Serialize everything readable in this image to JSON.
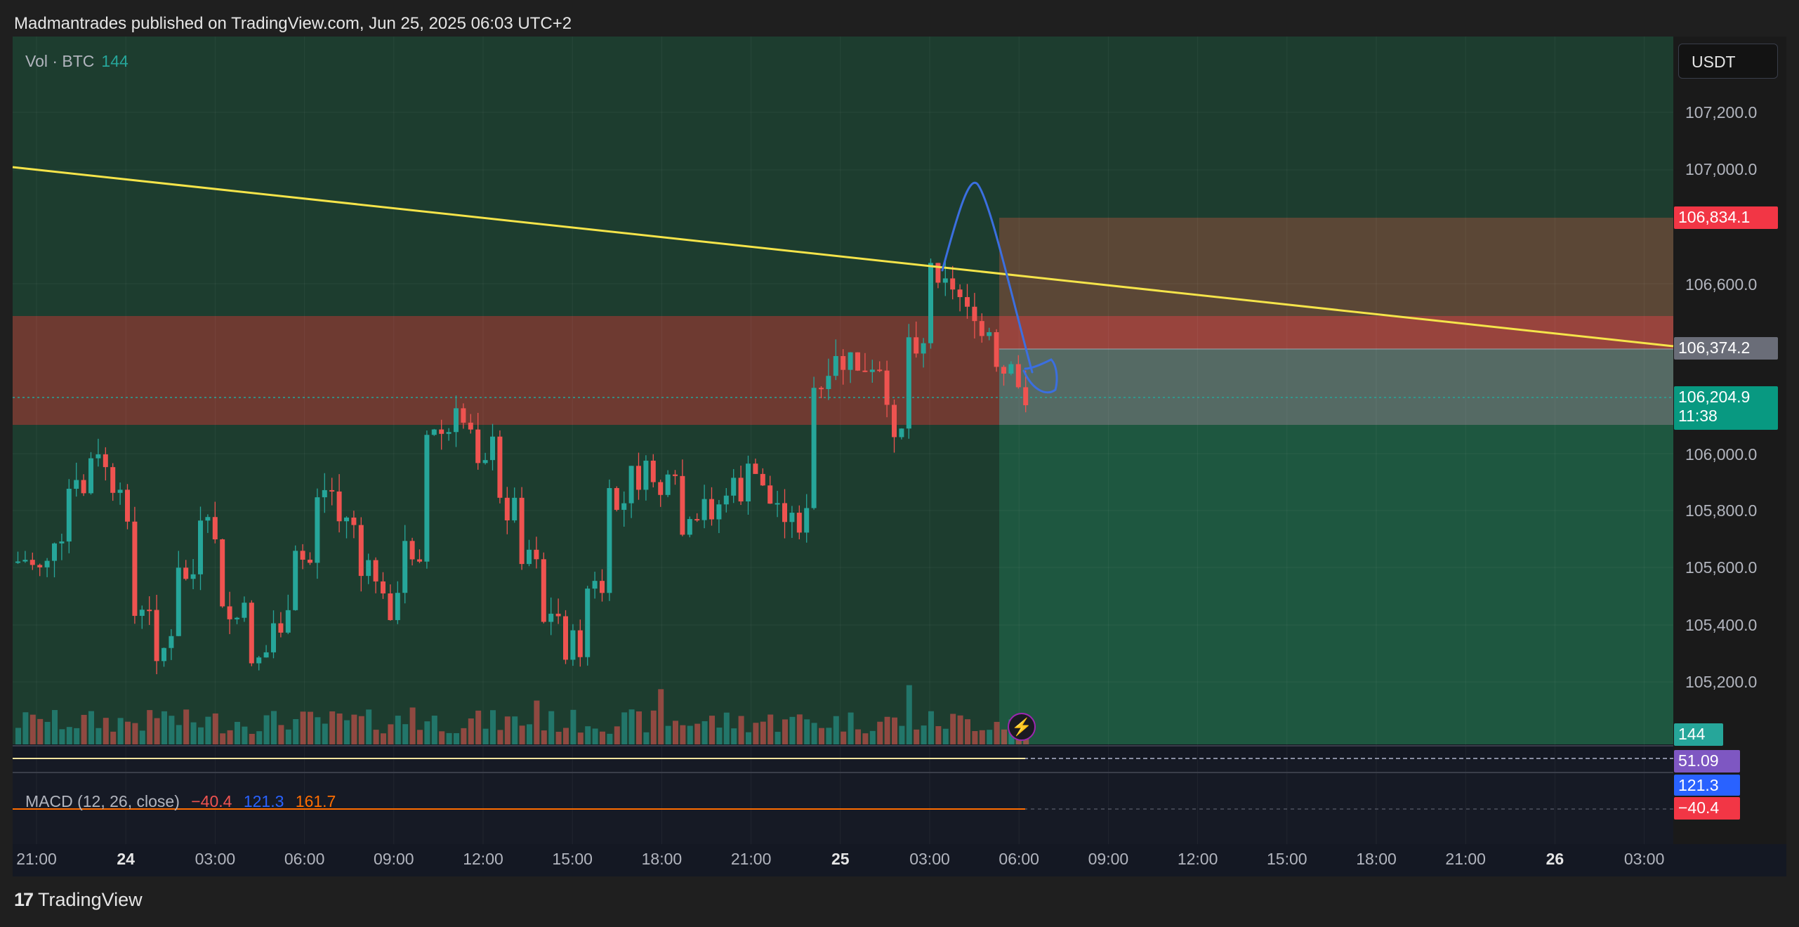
{
  "header": {
    "publisher": "Madmantrades published on TradingView.com, Jun 25, 2025 06:03 UTC+2"
  },
  "legend": {
    "vol_label": "Vol · BTC",
    "vol_value": "144",
    "macd_label": "MACD (12, 26, close)",
    "macd_values": [
      "−40.4",
      "121.3",
      "161.7"
    ]
  },
  "currency": "USDT",
  "price_axis": [
    "107,200.0",
    "107,000.0",
    "106,600.0",
    "106,000.0",
    "105,800.0",
    "105,600.0",
    "105,400.0",
    "105,200.0"
  ],
  "badges": {
    "upper": "106,834.1",
    "mid": "106,374.2",
    "last_price": "106,204.9",
    "countdown": "11:38",
    "volume": "144",
    "rsi": "51.09",
    "macd_signal": "121.3",
    "macd_hist": "−40.4"
  },
  "time_axis": [
    {
      "label": "21:00",
      "bold": false
    },
    {
      "label": "24",
      "bold": true
    },
    {
      "label": "03:00",
      "bold": false
    },
    {
      "label": "06:00",
      "bold": false
    },
    {
      "label": "09:00",
      "bold": false
    },
    {
      "label": "12:00",
      "bold": false
    },
    {
      "label": "15:00",
      "bold": false
    },
    {
      "label": "18:00",
      "bold": false
    },
    {
      "label": "21:00",
      "bold": false
    },
    {
      "label": "25",
      "bold": true
    },
    {
      "label": "03:00",
      "bold": false
    },
    {
      "label": "06:00",
      "bold": false
    },
    {
      "label": "09:00",
      "bold": false
    },
    {
      "label": "12:00",
      "bold": false
    },
    {
      "label": "15:00",
      "bold": false
    },
    {
      "label": "18:00",
      "bold": false
    },
    {
      "label": "21:00",
      "bold": false
    },
    {
      "label": "26",
      "bold": true
    },
    {
      "label": "03:00",
      "bold": false
    }
  ],
  "footer": {
    "brand": "TradingView",
    "mark": "17"
  },
  "colors": {
    "up": "#26a69a",
    "down": "#ef5350",
    "trendline": "#f5e44a",
    "drawing": "#3b6fe0",
    "zone_red": "#a0463f",
    "zone_green": "#2e7d52"
  },
  "icons": {
    "flash": "lightning-icon"
  }
}
